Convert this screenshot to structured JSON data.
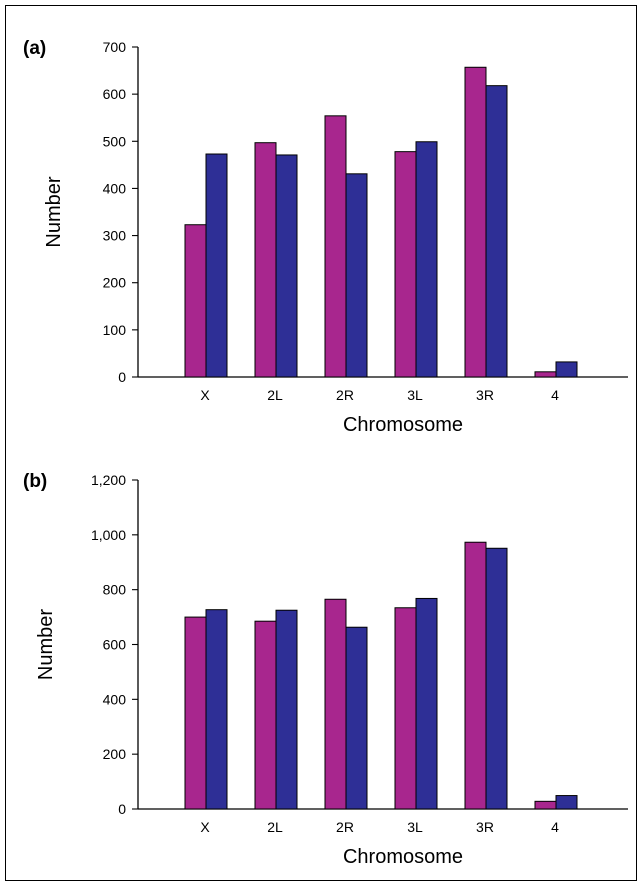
{
  "chart_data": [
    {
      "panel": "(a)",
      "type": "bar",
      "categories": [
        "X",
        "2L",
        "2R",
        "3L",
        "3R",
        "4"
      ],
      "series": [
        {
          "values": [
            323,
            497,
            554,
            478,
            657,
            11
          ]
        },
        {
          "values": [
            473,
            471,
            431,
            499,
            618,
            32
          ]
        }
      ],
      "xlabel": "Chromosome",
      "ylabel": "Number",
      "ylim": [
        0,
        700
      ],
      "yticks": [
        0,
        100,
        200,
        300,
        400,
        500,
        600,
        700
      ],
      "ytick_labels": [
        "0",
        "100",
        "200",
        "300",
        "400",
        "500",
        "600",
        "700"
      ],
      "colors": [
        "#a8268e",
        "#2e2f96"
      ]
    },
    {
      "panel": "(b)",
      "type": "bar",
      "categories": [
        "X",
        "2L",
        "2R",
        "3L",
        "3R",
        "4"
      ],
      "series": [
        {
          "values": [
            700,
            685,
            765,
            734,
            973,
            28
          ]
        },
        {
          "values": [
            727,
            725,
            663,
            768,
            951,
            49
          ]
        }
      ],
      "xlabel": "Chromosome",
      "ylabel": "Number",
      "ylim": [
        0,
        1200
      ],
      "yticks": [
        0,
        200,
        400,
        600,
        800,
        1000,
        1200
      ],
      "ytick_labels": [
        "0",
        "200",
        "400",
        "600",
        "800",
        "1,000",
        "1,200"
      ],
      "colors": [
        "#a8268e",
        "#2e2f96"
      ]
    }
  ]
}
